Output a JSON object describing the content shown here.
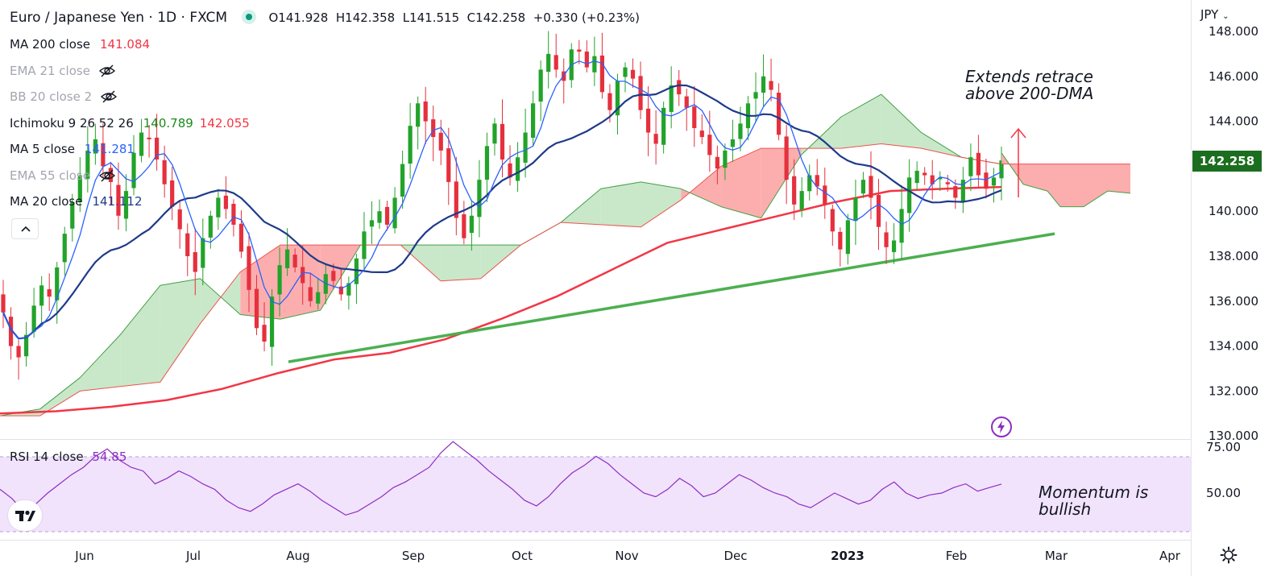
{
  "header": {
    "symbol": "Euro / Japanese Yen · 1D · FXCM",
    "open": "O141.928",
    "high": "H142.358",
    "low": "L141.515",
    "close": "C142.258",
    "change": "+0.330 (+0.23%)"
  },
  "indicators": [
    {
      "label": "MA 200 close",
      "value": "141.084",
      "color": "#f23645",
      "hidden": false
    },
    {
      "label": "EMA 21 close",
      "value": "",
      "color": "#a3a6af",
      "hidden": true
    },
    {
      "label": "BB 20 close 2",
      "value": "",
      "color": "#a3a6af",
      "hidden": true
    },
    {
      "label": "Ichimoku 9 26 52 26",
      "value": "140.789",
      "value2": "142.055",
      "color": "#1b8a1b",
      "color2": "#f23645",
      "hidden": false
    },
    {
      "label": "MA 5 close",
      "value": "141.281",
      "color": "#2962ff",
      "hidden": false
    },
    {
      "label": "EMA 55 close",
      "value": "",
      "color": "#a3a6af",
      "hidden": true
    },
    {
      "label": "MA 20 close",
      "value": "141.112",
      "color": "#1e3a8a",
      "hidden": false
    }
  ],
  "currency": "JPY",
  "last_price": "142.258",
  "annotations": {
    "price": [
      "Extends retrace",
      "above 200-DMA"
    ],
    "momentum": [
      "Momentum is",
      "bullish"
    ]
  },
  "rsi": {
    "label": "RSI 14 close",
    "value": "54.85"
  },
  "colors": {
    "bull": "#22a32a",
    "bear": "#e5303d",
    "ma200": "#f23645",
    "ma20": "#1e3a8a",
    "ma5": "#2962ff",
    "trendline": "#4caf50",
    "cloud_bull": "#c3e6c3",
    "cloud_bear": "#fca5a5",
    "rsi_line": "#8e2ec2",
    "rsi_band": "#f1e3fb",
    "arrow": "#f23645"
  },
  "chart_data": {
    "type": "candlestick",
    "instrument": "EUR/JPY",
    "timeframe": "1D",
    "x_ticks": [
      "Jun",
      "Jul",
      "Aug",
      "Sep",
      "Oct",
      "Nov",
      "Dec",
      "2023",
      "Feb",
      "Mar",
      "Apr"
    ],
    "y_ticks": [
      "148.000",
      "146.000",
      "144.000",
      "142.000",
      "140.000",
      "138.000",
      "136.000",
      "134.000",
      "132.000",
      "130.000"
    ],
    "ylim": [
      130,
      148
    ],
    "close_path": [
      135.5,
      134.0,
      133.5,
      134.5,
      135.8,
      136.7,
      136.2,
      137.5,
      139.0,
      140.4,
      141.6,
      142.7,
      143.2,
      142.0,
      141.3,
      139.8,
      140.9,
      142.6,
      143.5,
      143.2,
      142.3,
      141.2,
      140.2,
      139.2,
      138.0,
      137.3,
      138.8,
      139.8,
      140.6,
      140.1,
      139.4,
      138.2,
      136.5,
      134.8,
      134.2,
      136.2,
      137.6,
      138.3,
      137.5,
      136.8,
      136.0,
      136.4,
      137.2,
      136.9,
      136.3,
      136.8,
      137.9,
      139.1,
      139.6,
      140.0,
      139.4,
      140.6,
      142.1,
      143.8,
      144.8,
      144.0,
      143.3,
      142.7,
      141.3,
      139.7,
      138.8,
      139.8,
      141.4,
      142.9,
      143.9,
      142.3,
      141.5,
      142.4,
      143.5,
      144.8,
      146.3,
      147.0,
      146.3,
      145.8,
      147.2,
      147.1,
      146.4,
      146.9,
      145.3,
      144.5,
      145.8,
      146.4,
      145.9,
      144.5,
      143.5,
      143.0,
      144.6,
      145.6,
      145.2,
      144.6,
      143.7,
      143.3,
      142.5,
      141.9,
      142.7,
      143.2,
      143.9,
      144.8,
      145.3,
      146.0,
      145.4,
      143.4,
      141.4,
      140.3,
      140.9,
      141.6,
      141.1,
      140.3,
      139.1,
      138.3,
      139.6,
      140.6,
      141.4,
      140.6,
      139.3,
      138.4,
      138.7,
      140.1,
      141.5,
      141.8,
      141.6,
      141.2,
      141.5,
      141.2,
      140.6,
      141.4,
      142.4,
      141.6,
      141.0,
      141.5,
      142.26
    ],
    "series": [
      {
        "name": "MA 200 close",
        "last": 141.084
      },
      {
        "name": "MA 20 close",
        "last": 141.112
      },
      {
        "name": "MA 5 close",
        "last": 141.281
      },
      {
        "name": "Ichimoku 9 26 52 26",
        "last": [
          140.789,
          142.055
        ]
      }
    ],
    "ma200_path": [
      131.0,
      131.1,
      131.3,
      131.6,
      132.1,
      132.8,
      133.4,
      133.7,
      134.3,
      135.2,
      136.2,
      137.4,
      138.6,
      139.2,
      139.8,
      140.4,
      140.9,
      141.0,
      141.08
    ],
    "trendline": [
      [
        133.3,
        "Aug"
      ],
      [
        139.0,
        "Feb"
      ]
    ],
    "rsi_ylim": [
      30,
      80
    ],
    "rsi_ticks": [
      "75.00",
      "50.00"
    ],
    "rsi_path": [
      52,
      47,
      40,
      44,
      50,
      55,
      60,
      64,
      70,
      74,
      68,
      64,
      62,
      55,
      58,
      62,
      59,
      55,
      52,
      46,
      42,
      40,
      44,
      49,
      52,
      55,
      51,
      46,
      42,
      38,
      40,
      44,
      48,
      53,
      56,
      60,
      64,
      72,
      78,
      73,
      68,
      62,
      57,
      52,
      46,
      43,
      48,
      55,
      61,
      65,
      70,
      66,
      60,
      55,
      50,
      48,
      52,
      58,
      54,
      48,
      50,
      55,
      60,
      57,
      53,
      50,
      48,
      44,
      42,
      46,
      50,
      47,
      44,
      46,
      52,
      56,
      50,
      47,
      49,
      50,
      53,
      55,
      51,
      53,
      54.85
    ]
  }
}
